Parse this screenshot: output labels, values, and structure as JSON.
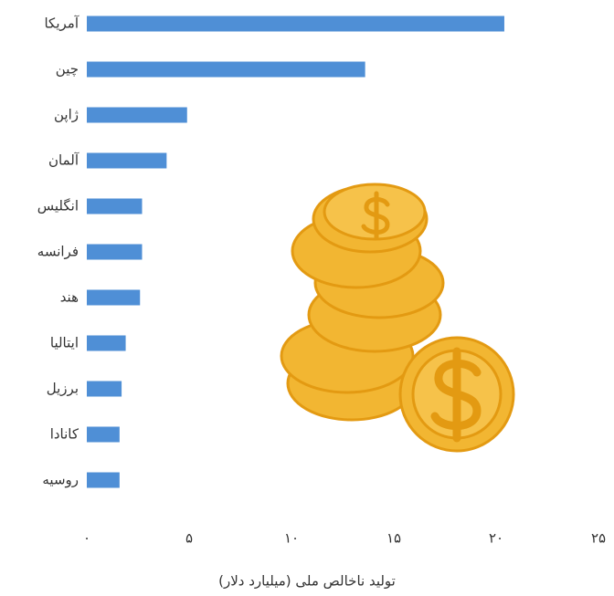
{
  "chart_data": {
    "type": "barh",
    "xlabel": "تولید ناخالص ملی (میلیارد دلار)",
    "categories": [
      "آمریکا",
      "چین",
      "ژاپن",
      "آلمان",
      "انگلیس",
      "فرانسه",
      "هند",
      "ایتالیا",
      "برزیل",
      "کانادا",
      "روسیه"
    ],
    "values": [
      20.4,
      13.6,
      4.9,
      3.9,
      2.7,
      2.7,
      2.6,
      1.9,
      1.7,
      1.6,
      1.6
    ],
    "color": "#4f8fd6",
    "xlim": [
      0,
      25
    ],
    "xticks": [
      {
        "value": 0,
        "label": "٠"
      },
      {
        "value": 5,
        "label": "۵"
      },
      {
        "value": 10,
        "label": "۱۰"
      },
      {
        "value": 15,
        "label": "۱۵"
      },
      {
        "value": 20,
        "label": "۲۰"
      },
      {
        "value": 25,
        "label": "۲۵"
      }
    ]
  }
}
